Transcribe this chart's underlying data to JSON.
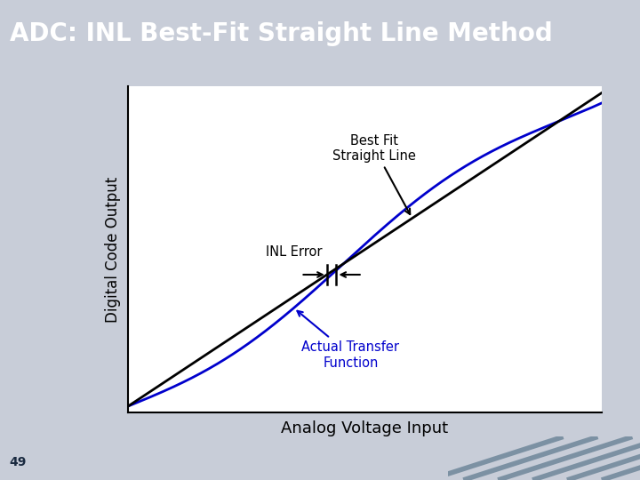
{
  "title": "ADC: INL Best-Fit Straight Line Method",
  "title_bg_color": "#2E6080",
  "title_text_color": "#FFFFFF",
  "title_fontsize": 20,
  "bg_color": "#C8CDD8",
  "plot_bg_color": "#FFFFFF",
  "xlabel": "Analog Voltage Input",
  "ylabel": "Digital Code Output",
  "xlabel_fontsize": 13,
  "ylabel_fontsize": 12,
  "page_number": "49",
  "best_fit_label": "Best Fit\nStraight Line",
  "actual_transfer_label": "Actual Transfer\nFunction",
  "inl_error_label": "INL Error",
  "best_fit_color": "#000000",
  "actual_transfer_color": "#0000CC",
  "annotation_color": "#000000",
  "actual_annotation_color": "#0000CC",
  "deco_color": "#4A6A80"
}
